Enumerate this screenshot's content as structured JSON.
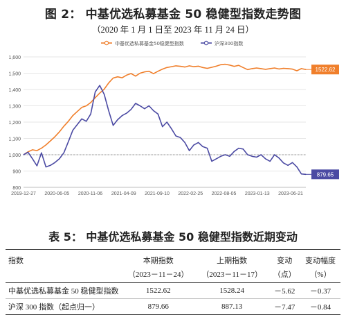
{
  "figure": {
    "title": "图 2：  中基优选私募基金 50 稳健型指数走势图",
    "subtitle": "（2020 年 1 月 1 日至 2023 年 11 月 24 日）"
  },
  "chart_data": {
    "type": "line",
    "title": "",
    "xlabel": "",
    "ylabel": "",
    "x_ticks": [
      "2019-12-27",
      "2020-06-05",
      "2020-11-06",
      "2021-04-09",
      "2021-09-10",
      "2022-02-25",
      "2022-08-05",
      "2023-01-13",
      "2023-06-21"
    ],
    "y_ticks": [
      800,
      900,
      1000,
      1100,
      1200,
      1300,
      1400,
      1500,
      1600
    ],
    "ylim": [
      800,
      1600
    ],
    "reference_line": 1000,
    "grid": "horizontal",
    "legend_position": "top",
    "series": [
      {
        "name": "中基优选私募基金50稳健型指数",
        "color": "#f07f2b",
        "end_label": "1522.62",
        "values": [
          1000,
          1018,
          1030,
          1025,
          1040,
          1060,
          1085,
          1110,
          1140,
          1175,
          1205,
          1240,
          1265,
          1290,
          1300,
          1320,
          1350,
          1378,
          1402,
          1440,
          1470,
          1478,
          1472,
          1488,
          1498,
          1482,
          1500,
          1508,
          1512,
          1497,
          1512,
          1525,
          1535,
          1540,
          1545,
          1542,
          1538,
          1545,
          1540,
          1543,
          1535,
          1530,
          1536,
          1543,
          1552,
          1555,
          1550,
          1542,
          1548,
          1535,
          1522,
          1528,
          1532,
          1528,
          1524,
          1528,
          1532,
          1526,
          1530,
          1528,
          1525,
          1515,
          1528,
          1522.62
        ]
      },
      {
        "name": "沪深300指数",
        "color": "#4b4aa3",
        "end_label": "879.65",
        "values": [
          1000,
          1015,
          975,
          932,
          1012,
          925,
          935,
          952,
          975,
          1012,
          1080,
          1150,
          1185,
          1220,
          1205,
          1250,
          1385,
          1425,
          1370,
          1270,
          1180,
          1215,
          1240,
          1255,
          1278,
          1315,
          1300,
          1282,
          1300,
          1270,
          1250,
          1172,
          1200,
          1160,
          1115,
          1105,
          1075,
          1025,
          1060,
          1075,
          1050,
          1040,
          960,
          975,
          990,
          1000,
          990,
          1020,
          1040,
          1035,
          1000,
          990,
          985,
          1000,
          975,
          960,
          1000,
          980,
          950,
          935,
          952,
          925,
          882,
          879.65
        ]
      }
    ]
  },
  "table": {
    "title": "表 5：  中基优选私募基金 50 稳健型指数近期变动",
    "headers": [
      [
        "指数",
        "本期指数",
        "上期指数",
        "变动",
        "变动幅度"
      ],
      [
        "",
        "（2023－11－24）",
        "（2023－11－17）",
        "（点）",
        "（%）"
      ]
    ],
    "rows": [
      [
        "中基优选私募基金 50 稳健型指数",
        "1522.62",
        "1528.24",
        "－5.62",
        "－0.37"
      ],
      [
        "沪深 300 指数（起点归一）",
        "879.66",
        "887.13",
        "－7.47",
        "－0.84"
      ]
    ]
  }
}
